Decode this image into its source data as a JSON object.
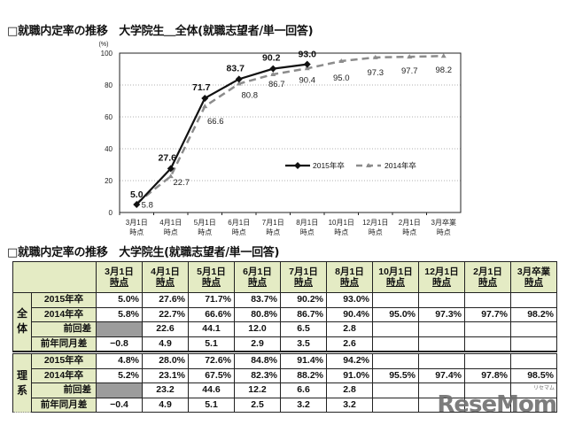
{
  "chart_title": "□就職内定率の推移　大学院生＿全体(就職志望者/単一回答)",
  "table_title": "□就職内定率の推移　大学院生(就職志望者/単一回答)",
  "chart_data": {
    "type": "line",
    "title": "就職内定率の推移 大学院生＿全体(就職志望者/単一回答)",
    "ylabel": "(%)",
    "xlabel": "",
    "ylim": [
      0,
      100
    ],
    "yticks": [
      0,
      20,
      40,
      60,
      80,
      100
    ],
    "grid": "horizontal-dotted",
    "legend_position": "center-right",
    "categories": [
      "3月1日時点",
      "4月1日時点",
      "5月1日時点",
      "6月1日時点",
      "7月1日時点",
      "8月1日時点",
      "10月1日時点",
      "12月1日時点",
      "2月1日時点",
      "3月卒業時点"
    ],
    "category_lines": [
      [
        "3月1日",
        "時点"
      ],
      [
        "4月1日",
        "時点"
      ],
      [
        "5月1日",
        "時点"
      ],
      [
        "6月1日",
        "時点"
      ],
      [
        "7月1日",
        "時点"
      ],
      [
        "8月1日",
        "時点"
      ],
      [
        "10月1日",
        "時点"
      ],
      [
        "12月1日",
        "時点"
      ],
      [
        "2月1日",
        "時点"
      ],
      [
        "3月卒業",
        "時点"
      ]
    ],
    "series": [
      {
        "name": "2015年卒",
        "values": [
          5.0,
          27.6,
          71.7,
          83.7,
          90.2,
          93.0,
          null,
          null,
          null,
          null
        ],
        "color": "#111111",
        "style": "solid",
        "marker": "diamond"
      },
      {
        "name": "2014年卒",
        "values": [
          5.8,
          22.7,
          66.6,
          80.8,
          86.7,
          90.4,
          95.0,
          97.3,
          97.7,
          98.2
        ],
        "color": "#8c8c8c",
        "style": "dashed",
        "marker": "triangle"
      }
    ]
  },
  "table": {
    "headers": [
      [
        "3月1日",
        "時点"
      ],
      [
        "4月1日",
        "時点"
      ],
      [
        "5月1日",
        "時点"
      ],
      [
        "6月1日",
        "時点"
      ],
      [
        "7月1日",
        "時点"
      ],
      [
        "8月1日",
        "時点"
      ],
      [
        "10月1日",
        "時点"
      ],
      [
        "12月1日",
        "時点"
      ],
      [
        "2月1日",
        "時点"
      ],
      [
        "3月卒業",
        "時点"
      ]
    ],
    "groups": [
      {
        "name": "全\n体",
        "rows": [
          {
            "label": "2015年卒",
            "values": [
              "5.0%",
              "27.6%",
              "71.7%",
              "83.7%",
              "90.2%",
              "93.0%",
              "",
              "",
              "",
              ""
            ]
          },
          {
            "label": "2014年卒",
            "values": [
              "5.8%",
              "22.7%",
              "66.6%",
              "80.8%",
              "86.7%",
              "90.4%",
              "95.0%",
              "97.3%",
              "97.7%",
              "98.2%"
            ]
          },
          {
            "label": "前回差",
            "values": [
              "",
              "22.6",
              "44.1",
              "12.0",
              "6.5",
              "2.8",
              "",
              "",
              "",
              ""
            ]
          },
          {
            "label": "前年同月差",
            "values": [
              "−0.8",
              "4.9",
              "5.1",
              "2.9",
              "3.5",
              "2.6",
              "",
              "",
              "",
              ""
            ]
          }
        ]
      },
      {
        "name": "理\n系",
        "rows": [
          {
            "label": "2015年卒",
            "values": [
              "4.8%",
              "28.0%",
              "72.6%",
              "84.8%",
              "91.4%",
              "94.2%",
              "",
              "",
              "",
              ""
            ]
          },
          {
            "label": "2014年卒",
            "values": [
              "5.2%",
              "23.1%",
              "67.5%",
              "82.3%",
              "88.2%",
              "91.0%",
              "95.5%",
              "97.4%",
              "97.8%",
              "98.5%"
            ]
          },
          {
            "label": "前回差",
            "values": [
              "",
              "23.2",
              "44.6",
              "12.2",
              "6.6",
              "2.8",
              "",
              "",
              "",
              ""
            ]
          },
          {
            "label": "前年同月差",
            "values": [
              "−0.4",
              "4.9",
              "5.1",
              "2.5",
              "3.2",
              "3.2",
              "",
              "",
              "",
              ""
            ]
          }
        ]
      }
    ]
  },
  "watermark": {
    "text": "ReseMom",
    "sub": "リセマム"
  }
}
